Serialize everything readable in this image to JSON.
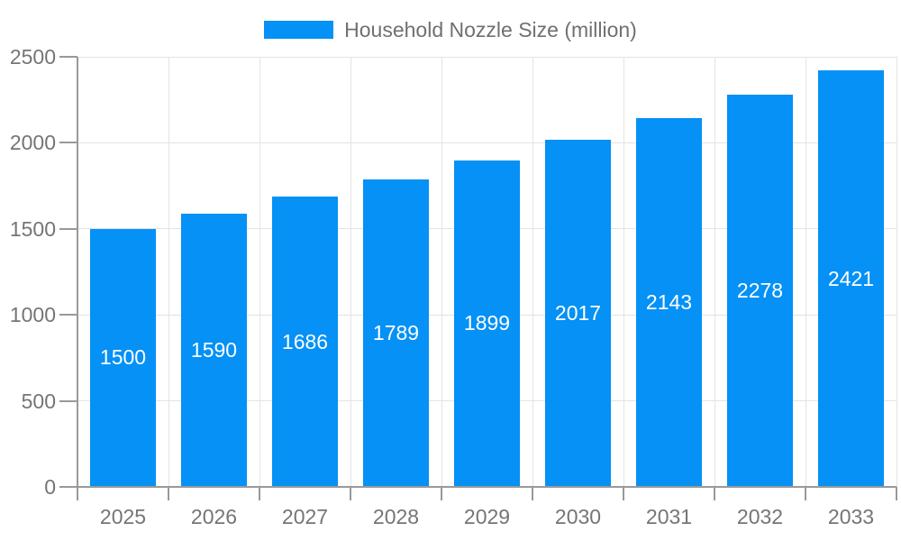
{
  "chart_data": {
    "type": "bar",
    "title": "Household Nozzle Size (million)",
    "categories": [
      "2025",
      "2026",
      "2027",
      "2028",
      "2029",
      "2030",
      "2031",
      "2032",
      "2033"
    ],
    "series": [
      {
        "name": "Household Nozzle Size (million)",
        "values": [
          1500,
          1590,
          1686,
          1789,
          1899,
          2017,
          2143,
          2278,
          2421
        ]
      }
    ],
    "xlabel": "",
    "ylabel": "",
    "ylim": [
      0,
      2500
    ],
    "yticks": [
      0,
      500,
      1000,
      1500,
      2000,
      2500
    ],
    "grid": true,
    "legend_position": "top",
    "value_labels": "inside-center"
  },
  "colors": {
    "bar": "#0591f5",
    "bar_value_text": "#ffffff",
    "axis_line": "#999999",
    "grid_line": "#e3e3e3",
    "axis_text": "#757575",
    "legend_text": "#707070",
    "background": "#ffffff"
  }
}
